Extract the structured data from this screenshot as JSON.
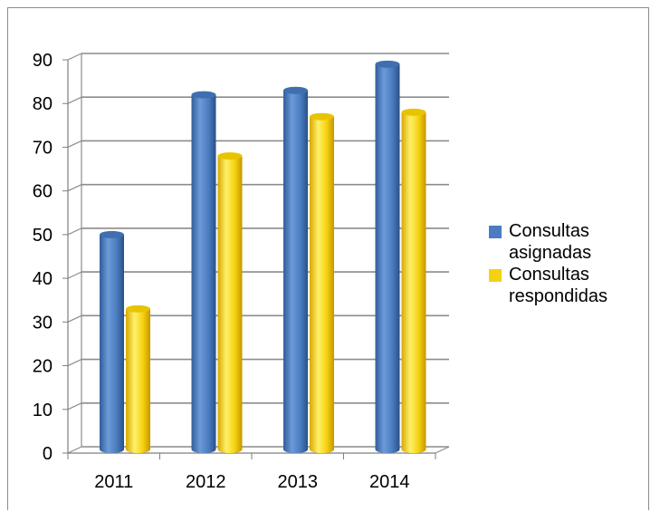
{
  "chart_data": {
    "type": "bar",
    "categories": [
      "2011",
      "2012",
      "2013",
      "2014"
    ],
    "series": [
      {
        "name": "Consultas asignadas",
        "values": [
          50,
          82,
          83,
          89
        ],
        "color": "#4a7cc0"
      },
      {
        "name": "Consultas respondidas",
        "values": [
          33,
          68,
          77,
          78
        ],
        "color": "#f5d20f"
      }
    ],
    "ylim": [
      0,
      90
    ],
    "yticks": [
      0,
      10,
      20,
      30,
      40,
      50,
      60,
      70,
      80,
      90
    ],
    "grid": true,
    "legend_position": "right",
    "style": "3d-cylinder"
  }
}
